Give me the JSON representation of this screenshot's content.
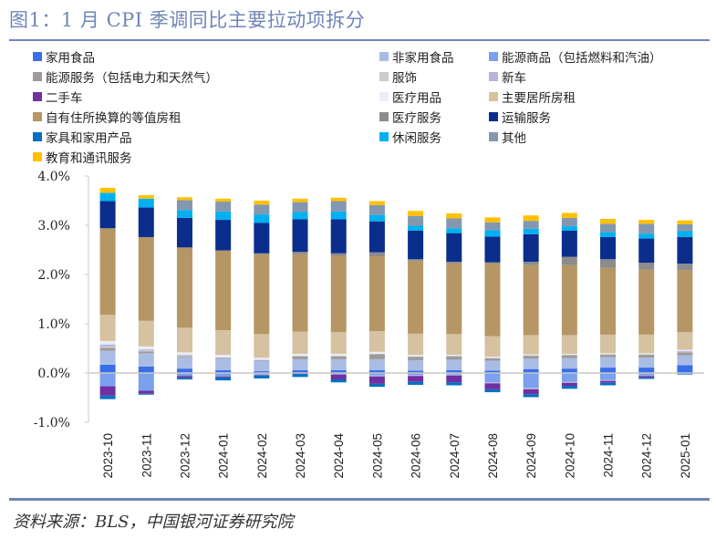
{
  "title": "图1：1 月 CPI 季调同比主要拉动项拆分",
  "source": "资料来源：BLS，中国银河证券研究院",
  "chart_data": {
    "type": "bar",
    "stacked": true,
    "title": "图1：1 月 CPI 季调同比主要拉动项拆分",
    "xlabel": "",
    "ylabel": "",
    "ylim": [
      -1.0,
      4.0
    ],
    "yticks": [
      "4.0%",
      "3.0%",
      "2.0%",
      "1.0%",
      "0.0%",
      "-1.0%"
    ],
    "ytick_values": [
      4.0,
      3.0,
      2.0,
      1.0,
      0.0,
      -1.0
    ],
    "grid": false,
    "legend_position": "top",
    "categories": [
      "2023-10",
      "2023-11",
      "2023-12",
      "2024-01",
      "2024-02",
      "2024-03",
      "2024-04",
      "2024-05",
      "2024-06",
      "2024-07",
      "2024-08",
      "2024-09",
      "2024-10",
      "2024-11",
      "2024-12",
      "2025-01"
    ],
    "series": [
      {
        "name": "家用食品",
        "color": "#3a6ee8",
        "values": [
          0.17,
          0.13,
          0.09,
          0.06,
          0.04,
          0.06,
          0.06,
          0.06,
          0.05,
          0.06,
          0.05,
          0.08,
          0.09,
          0.11,
          0.11,
          0.16
        ]
      },
      {
        "name": "非家用食品",
        "color": "#a9bde4",
        "values": [
          0.28,
          0.27,
          0.23,
          0.23,
          0.21,
          0.22,
          0.22,
          0.22,
          0.21,
          0.21,
          0.2,
          0.21,
          0.21,
          0.21,
          0.2,
          0.2
        ]
      },
      {
        "name": "能源商品（包括燃料和汽油）",
        "color": "#7aa0ee",
        "values": [
          -0.27,
          -0.36,
          -0.06,
          -0.07,
          -0.03,
          0.0,
          -0.02,
          -0.05,
          -0.04,
          -0.03,
          -0.19,
          -0.3,
          -0.18,
          -0.14,
          -0.05,
          0.0
        ]
      },
      {
        "name": "能源服务（包括电力和天然气）",
        "color": "#9e9a9a",
        "values": [
          0.06,
          0.04,
          0.02,
          0.02,
          0.01,
          0.06,
          0.06,
          0.1,
          0.07,
          0.07,
          0.05,
          0.06,
          0.06,
          0.05,
          0.06,
          0.06
        ]
      },
      {
        "name": "服饰",
        "color": "#cbcbcb",
        "values": [
          0.03,
          0.02,
          0.02,
          0.01,
          0.01,
          0.01,
          0.01,
          0.01,
          0.01,
          0.01,
          0.01,
          0.01,
          0.01,
          0.01,
          0.01,
          0.01
        ]
      },
      {
        "name": "新车",
        "color": "#b7b3dc",
        "values": [
          0.04,
          0.02,
          0.01,
          0.0,
          -0.01,
          -0.01,
          -0.01,
          -0.02,
          -0.02,
          -0.02,
          -0.02,
          -0.03,
          -0.02,
          -0.02,
          -0.01,
          0.02
        ]
      },
      {
        "name": "二手车",
        "color": "#7030a0",
        "values": [
          -0.19,
          -0.06,
          -0.03,
          -0.02,
          -0.01,
          -0.01,
          -0.1,
          -0.15,
          -0.12,
          -0.14,
          -0.12,
          -0.1,
          -0.06,
          -0.04,
          -0.03,
          -0.01
        ]
      },
      {
        "name": "医疗用品",
        "color": "#e8eef8",
        "values": [
          0.07,
          0.06,
          0.05,
          0.05,
          0.04,
          0.04,
          0.04,
          0.04,
          0.03,
          0.02,
          0.02,
          0.02,
          0.02,
          0.02,
          0.02,
          0.02
        ]
      },
      {
        "name": "主要居所房租",
        "color": "#d6c1a0",
        "values": [
          0.53,
          0.52,
          0.5,
          0.5,
          0.48,
          0.45,
          0.44,
          0.42,
          0.43,
          0.42,
          0.42,
          0.39,
          0.38,
          0.38,
          0.38,
          0.36
        ]
      },
      {
        "name": "自有住所换算的等值房租",
        "color": "#b59664",
        "values": [
          1.76,
          1.7,
          1.63,
          1.62,
          1.62,
          1.57,
          1.55,
          1.52,
          1.48,
          1.44,
          1.47,
          1.42,
          1.42,
          1.36,
          1.32,
          1.26
        ]
      },
      {
        "name": "医疗服务",
        "color": "#8c8c8c",
        "values": [
          0.0,
          0.0,
          0.0,
          0.0,
          0.02,
          0.05,
          0.05,
          0.08,
          0.03,
          0.03,
          0.03,
          0.07,
          0.17,
          0.17,
          0.14,
          0.13
        ]
      },
      {
        "name": "运输服务",
        "color": "#0b2d8c",
        "values": [
          0.55,
          0.6,
          0.6,
          0.62,
          0.62,
          0.66,
          0.69,
          0.63,
          0.58,
          0.58,
          0.52,
          0.56,
          0.53,
          0.45,
          0.49,
          0.54
        ]
      },
      {
        "name": "家具和家用产品",
        "color": "#0070c0",
        "values": [
          -0.07,
          -0.02,
          -0.04,
          -0.06,
          -0.06,
          -0.06,
          -0.06,
          -0.06,
          -0.06,
          -0.06,
          -0.06,
          -0.06,
          -0.06,
          -0.05,
          -0.03,
          -0.02
        ]
      },
      {
        "name": "休闲服务",
        "color": "#00b0f0",
        "values": [
          0.17,
          0.18,
          0.16,
          0.17,
          0.17,
          0.15,
          0.16,
          0.13,
          0.1,
          0.1,
          0.13,
          0.11,
          0.09,
          0.1,
          0.1,
          0.12
        ]
      },
      {
        "name": "其他",
        "color": "#8497b0",
        "values": [
          0.0,
          0.0,
          0.2,
          0.2,
          0.2,
          0.2,
          0.21,
          0.2,
          0.2,
          0.2,
          0.16,
          0.16,
          0.17,
          0.17,
          0.2,
          0.14
        ]
      },
      {
        "name": "教育和通讯服务",
        "color": "#ffc000",
        "values": [
          0.1,
          0.07,
          0.06,
          0.06,
          0.08,
          0.07,
          0.07,
          0.08,
          0.1,
          0.1,
          0.1,
          0.11,
          0.1,
          0.1,
          0.08,
          0.08
        ]
      }
    ]
  }
}
